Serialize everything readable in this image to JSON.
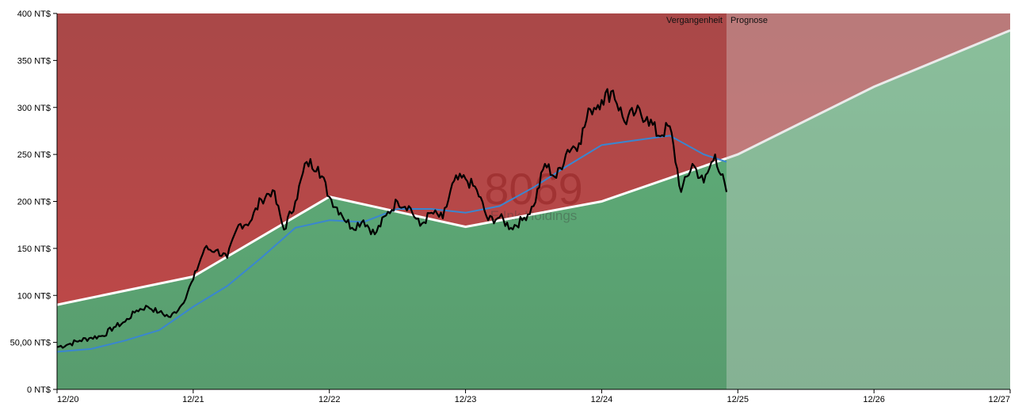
{
  "chart_data": {
    "type": "line",
    "currency_unit": "NT$",
    "ylim": [
      0,
      400
    ],
    "xlim": [
      "2020-12",
      "2027-12"
    ],
    "x_tick_labels": [
      "12/20",
      "12/21",
      "12/22",
      "12/23",
      "12/24",
      "12/25",
      "12/26",
      "12/27"
    ],
    "y_tick_labels": [
      "0 NT$",
      "50,00 NT$",
      "100 NT$",
      "150 NT$",
      "200 NT$",
      "250 NT$",
      "300 NT$",
      "350 NT$",
      "400 NT$"
    ],
    "y_ticks": [
      0,
      50,
      100,
      150,
      200,
      250,
      300,
      350,
      400
    ],
    "period_labels": {
      "past": "Vergangenheit",
      "forecast": "Prognose"
    },
    "forecast_start": "2025-11",
    "watermark": {
      "ticker": "8069",
      "name": "E Ink Holdings"
    },
    "colors": {
      "overvalued_zone": "#b84848",
      "undervalued_zone": "#5ba872",
      "forecast_overlay": "#d8d8d8",
      "fair_value_line": "#ffffff",
      "price_line": "#000000",
      "moving_average_line": "#3a86d0"
    },
    "fair_value": {
      "x": [
        "2020-12",
        "2021-12",
        "2022-12",
        "2023-12",
        "2024-12",
        "2025-12",
        "2026-12",
        "2027-12"
      ],
      "y": [
        90,
        120,
        205,
        173,
        200,
        250,
        322,
        382
      ]
    },
    "price": {
      "x": [
        "2020-12",
        "2021-01",
        "2021-02",
        "2021-03",
        "2021-04",
        "2021-05",
        "2021-06",
        "2021-07",
        "2021-08",
        "2021-09",
        "2021-10",
        "2021-11",
        "2021-12",
        "2022-01",
        "2022-02",
        "2022-03",
        "2022-04",
        "2022-05",
        "2022-06",
        "2022-07",
        "2022-08",
        "2022-09",
        "2022-10",
        "2022-11",
        "2022-12",
        "2023-01",
        "2023-02",
        "2023-03",
        "2023-04",
        "2023-05",
        "2023-06",
        "2023-07",
        "2023-08",
        "2023-09",
        "2023-10",
        "2023-11",
        "2023-12",
        "2024-01",
        "2024-02",
        "2024-03",
        "2024-04",
        "2024-05",
        "2024-06",
        "2024-07",
        "2024-08",
        "2024-09",
        "2024-10",
        "2024-11",
        "2024-12",
        "2025-01",
        "2025-02",
        "2025-03",
        "2025-04",
        "2025-05",
        "2025-06",
        "2025-07",
        "2025-08",
        "2025-09",
        "2025-10",
        "2025-11"
      ],
      "y": [
        45,
        48,
        52,
        55,
        57,
        66,
        72,
        84,
        88,
        82,
        77,
        90,
        117,
        150,
        148,
        140,
        175,
        178,
        202,
        212,
        170,
        200,
        242,
        237,
        205,
        188,
        172,
        180,
        165,
        185,
        200,
        195,
        174,
        188,
        182,
        222,
        224,
        212,
        180,
        183,
        172,
        180,
        195,
        240,
        225,
        255,
        262,
        298,
        308,
        318,
        285,
        295,
        290,
        270,
        280,
        210,
        240,
        220,
        250,
        210
      ]
    },
    "moving_average": {
      "x": [
        "2020-12",
        "2021-03",
        "2021-06",
        "2021-09",
        "2021-12",
        "2022-03",
        "2022-06",
        "2022-09",
        "2022-12",
        "2023-03",
        "2023-06",
        "2023-09",
        "2023-12",
        "2024-03",
        "2024-06",
        "2024-09",
        "2024-12",
        "2025-03",
        "2025-06",
        "2025-09",
        "2025-11"
      ],
      "y": [
        40,
        43,
        52,
        63,
        88,
        110,
        140,
        172,
        180,
        178,
        192,
        192,
        188,
        195,
        215,
        238,
        260,
        265,
        270,
        250,
        242
      ]
    }
  }
}
